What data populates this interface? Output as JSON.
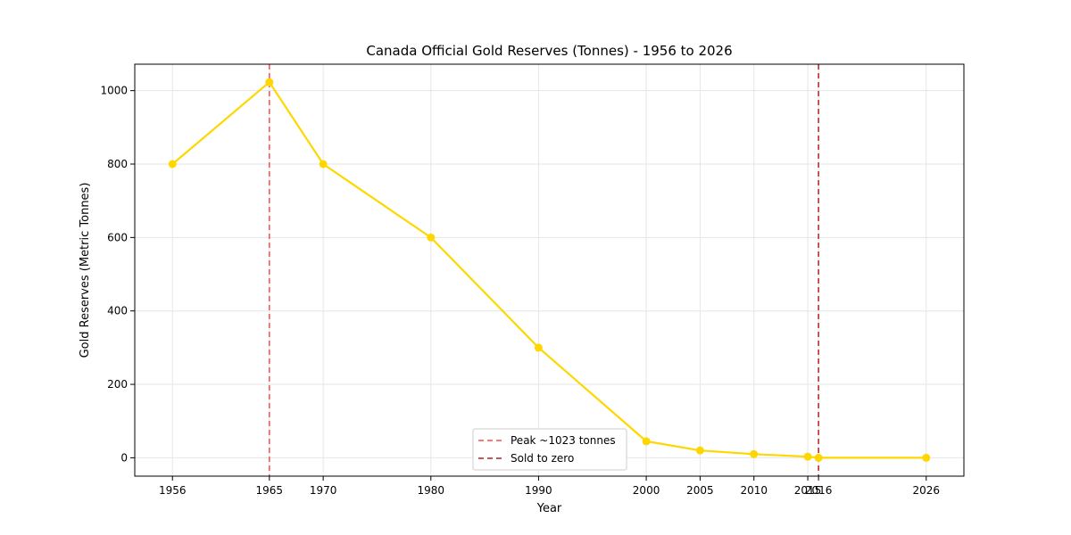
{
  "chart_data": {
    "type": "line",
    "title": "Canada Official Gold Reserves (Tonnes) - 1956 to 2026",
    "xlabel": "Year",
    "ylabel": "Gold Reserves (Metric Tonnes)",
    "xlim": [
      1952.5,
      2029.5
    ],
    "ylim": [
      -50,
      1072
    ],
    "x_ticks": [
      1956,
      1965,
      1970,
      1980,
      1990,
      2000,
      2005,
      2010,
      2015,
      2016,
      2026
    ],
    "y_ticks": [
      0,
      200,
      400,
      600,
      800,
      1000
    ],
    "grid": true,
    "series": [
      {
        "color": "#FFD700",
        "x": [
          1956,
          1965,
          1970,
          1980,
          1990,
          2000,
          2005,
          2010,
          2015,
          2016,
          2026
        ],
        "y": [
          800,
          1023,
          800,
          600,
          300,
          45,
          20,
          10,
          3,
          0,
          0
        ]
      }
    ],
    "reference_lines": [
      {
        "x": 1965,
        "label": "Peak ~1023 tonnes",
        "color": "#ff4d4d",
        "style": "dashed"
      },
      {
        "x": 2016,
        "label": "Sold to zero",
        "color": "#b22222",
        "style": "dashed"
      }
    ],
    "legend_position": "bottom-center"
  }
}
